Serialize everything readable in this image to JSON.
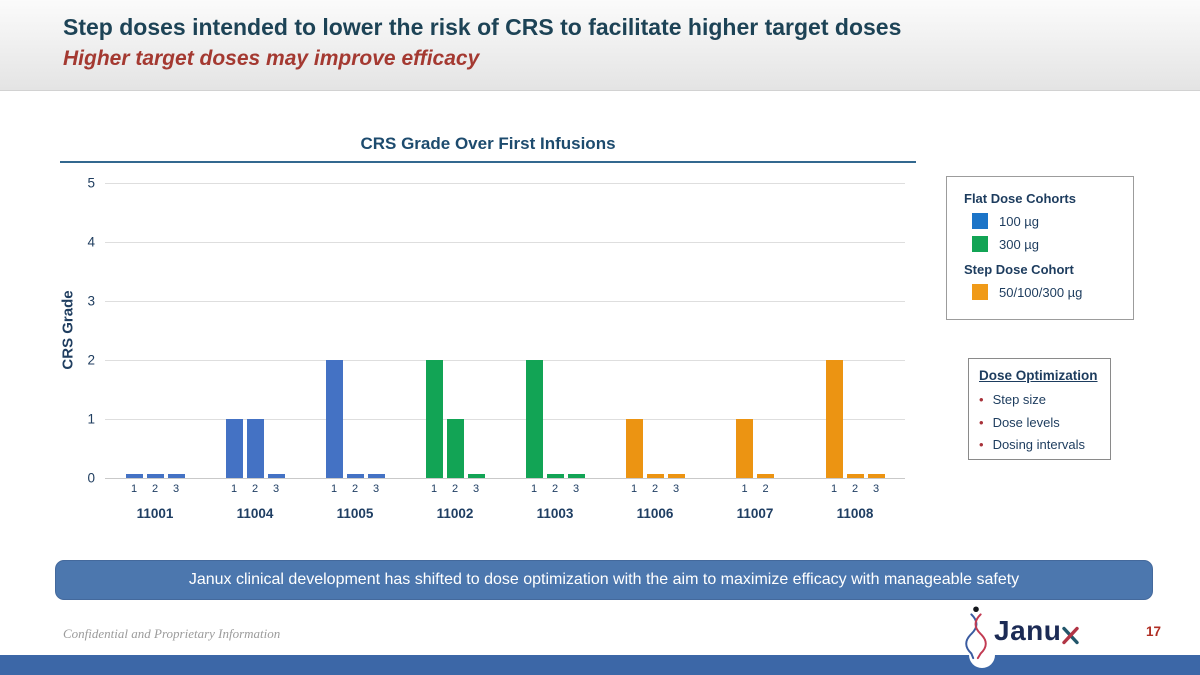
{
  "header": {
    "title": "Step doses intended to lower the risk of CRS to facilitate higher target doses",
    "subtitle": "Higher target doses may improve efficacy"
  },
  "chart_data": {
    "type": "bar",
    "title": "CRS Grade Over First Infusions",
    "ylabel": "CRS Grade",
    "ylim": [
      0,
      5
    ],
    "yticks": [
      0,
      1,
      2,
      3,
      4,
      5
    ],
    "grid": true,
    "colors": {
      "blue": "#4472C4",
      "green": "#12A455",
      "orange": "#EC9412"
    },
    "groups": [
      {
        "patient": "11001",
        "color_key": "blue",
        "infusions": [
          "1",
          "2",
          "3"
        ],
        "values": [
          0,
          0,
          0
        ]
      },
      {
        "patient": "11004",
        "color_key": "blue",
        "infusions": [
          "1",
          "2",
          "3"
        ],
        "values": [
          1,
          1,
          0
        ]
      },
      {
        "patient": "11005",
        "color_key": "blue",
        "infusions": [
          "1",
          "2",
          "3"
        ],
        "values": [
          2,
          0,
          0
        ]
      },
      {
        "patient": "11002",
        "color_key": "green",
        "infusions": [
          "1",
          "2",
          "3"
        ],
        "values": [
          2,
          1,
          0
        ]
      },
      {
        "patient": "11003",
        "color_key": "green",
        "infusions": [
          "1",
          "2",
          "3"
        ],
        "values": [
          2,
          0,
          0
        ]
      },
      {
        "patient": "11006",
        "color_key": "orange",
        "infusions": [
          "1",
          "2",
          "3"
        ],
        "values": [
          1,
          0,
          0
        ]
      },
      {
        "patient": "11007",
        "color_key": "orange",
        "infusions": [
          "1",
          "2"
        ],
        "values": [
          1,
          0
        ]
      },
      {
        "patient": "11008",
        "color_key": "orange",
        "infusions": [
          "1",
          "2",
          "3"
        ],
        "values": [
          2,
          0,
          0
        ]
      }
    ]
  },
  "legend": {
    "sections": [
      {
        "title": "Flat Dose Cohorts",
        "items": [
          {
            "label": "100 µg",
            "color": "#1B74C8"
          },
          {
            "label": "300 µg",
            "color": "#12A455"
          }
        ]
      },
      {
        "title": "Step Dose Cohort",
        "items": [
          {
            "label": "50/100/300 µg",
            "color": "#F09A18"
          }
        ]
      }
    ]
  },
  "dose_box": {
    "title": "Dose Optimization",
    "items": [
      "Step size",
      "Dose levels",
      "Dosing intervals"
    ],
    "bullet": "•"
  },
  "banner": {
    "text": "Janux clinical development has shifted to dose optimization with the aim to maximize efficacy with manageable safety"
  },
  "footer": {
    "confidential": "Confidential and Proprietary Information",
    "logo_text_main": "Janu",
    "page": "17"
  }
}
